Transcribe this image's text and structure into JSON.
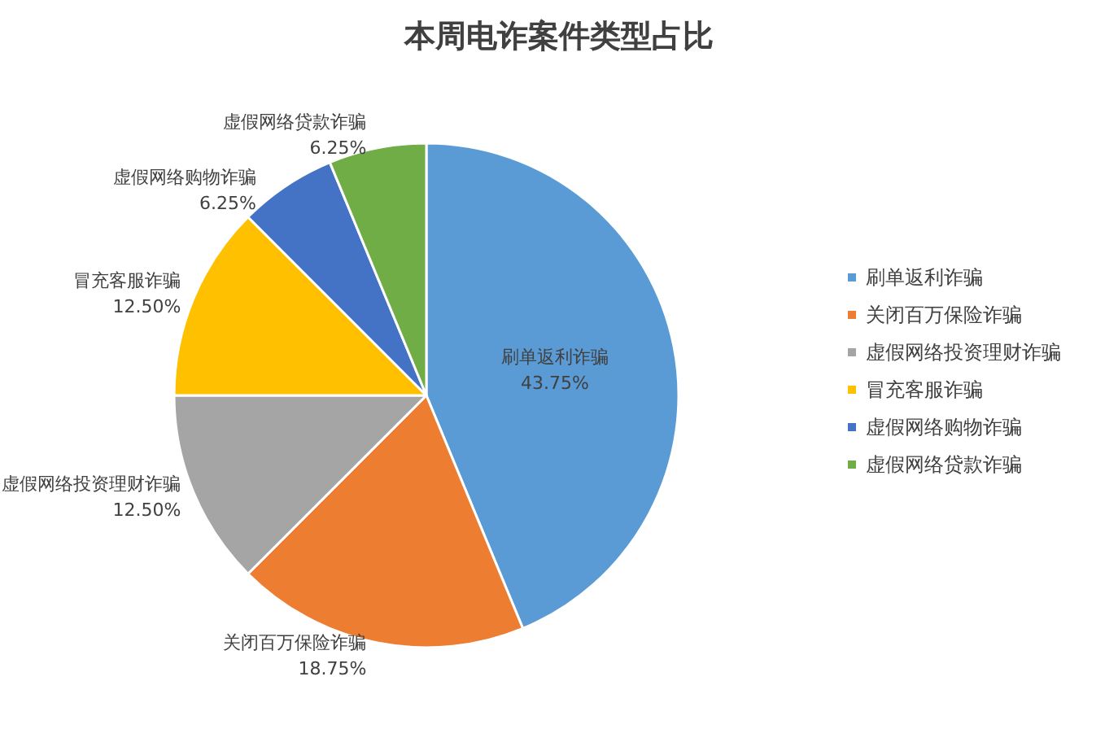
{
  "chart_data": {
    "type": "pie",
    "title": "本周电诈案件类型占比",
    "categories": [
      "刷单返利诈骗",
      "关闭百万保险诈骗",
      "虚假网络投资理财诈骗",
      "冒充客服诈骗",
      "虚假网络购物诈骗",
      "虚假网络贷款诈骗"
    ],
    "values": [
      43.75,
      18.75,
      12.5,
      12.5,
      6.25,
      6.25
    ],
    "value_labels": [
      "43.75%",
      "18.75%",
      "12.50%",
      "12.50%",
      "6.25%",
      "6.25%"
    ],
    "colors": [
      "#5b9bd5",
      "#ed7d31",
      "#a5a5a5",
      "#ffc000",
      "#4472c4",
      "#70ad47"
    ],
    "legend": "right"
  }
}
